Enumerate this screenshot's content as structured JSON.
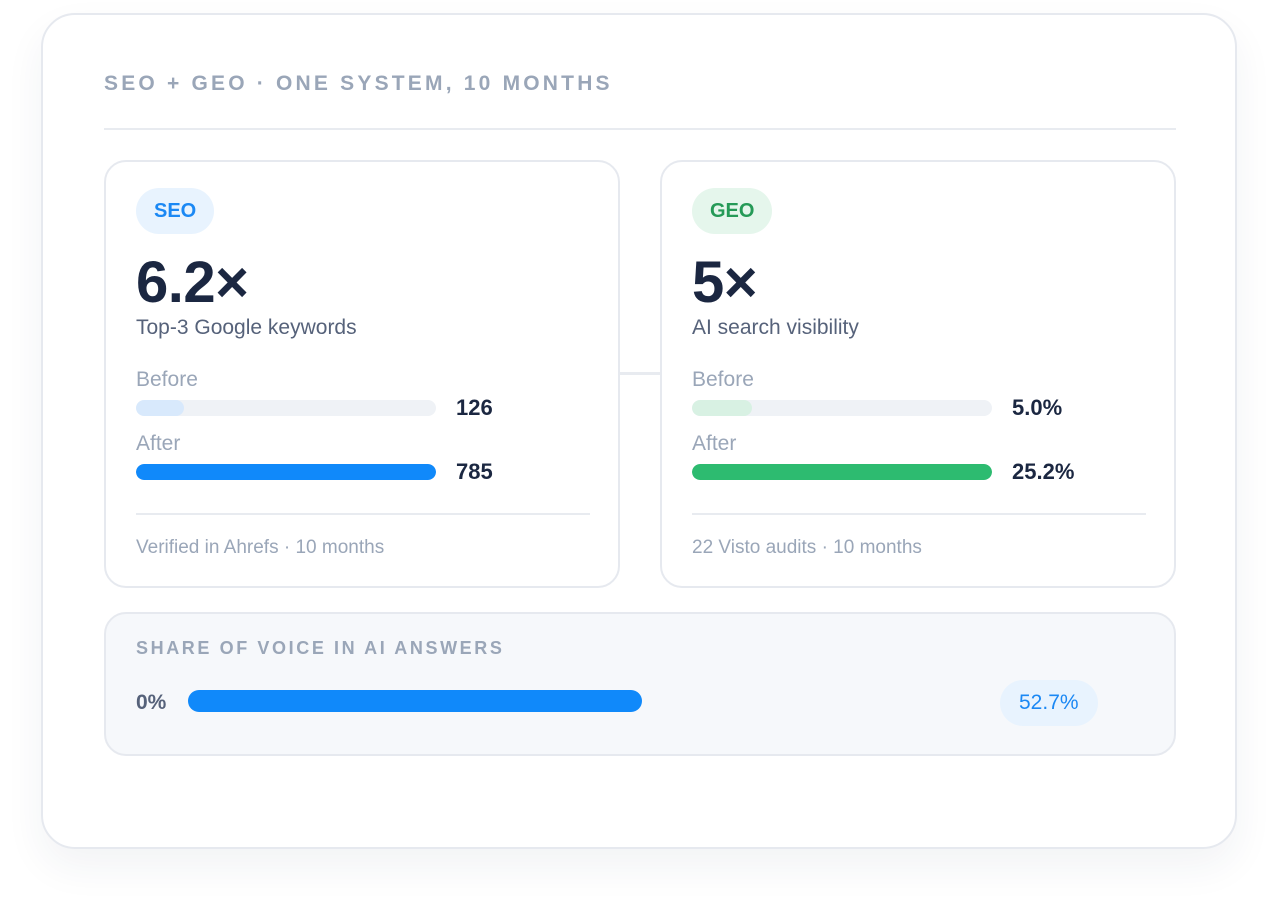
{
  "header": {
    "title": "SEO + GEO · ONE SYSTEM, 10 MONTHS"
  },
  "seo_card": {
    "tag": "SEO",
    "multiplier": "6.2×",
    "metric": "Top-3 Google keywords",
    "before_label": "Before",
    "before_value": "126",
    "before_fraction": 0.16,
    "after_label": "After",
    "after_value": "785",
    "after_fraction": 1.0,
    "footer": "Verified in Ahrefs · 10 months"
  },
  "geo_card": {
    "tag": "GEO",
    "multiplier": "5×",
    "metric": "AI search visibility",
    "before_label": "Before",
    "before_value": "5.0%",
    "before_fraction": 0.2,
    "after_label": "After",
    "after_value": "25.2%",
    "after_fraction": 1.0,
    "footer": "22 Visto audits · 10 months"
  },
  "share_of_voice": {
    "title": "SHARE OF VOICE IN AI ANSWERS",
    "start_label": "0%",
    "value_label": "52.7%",
    "fraction": 0.527
  },
  "colors": {
    "seo_accent": "#1089fa",
    "geo_accent": "#2dbb70",
    "text_dark": "#1b2741",
    "text_muted": "#9aa6b8"
  }
}
